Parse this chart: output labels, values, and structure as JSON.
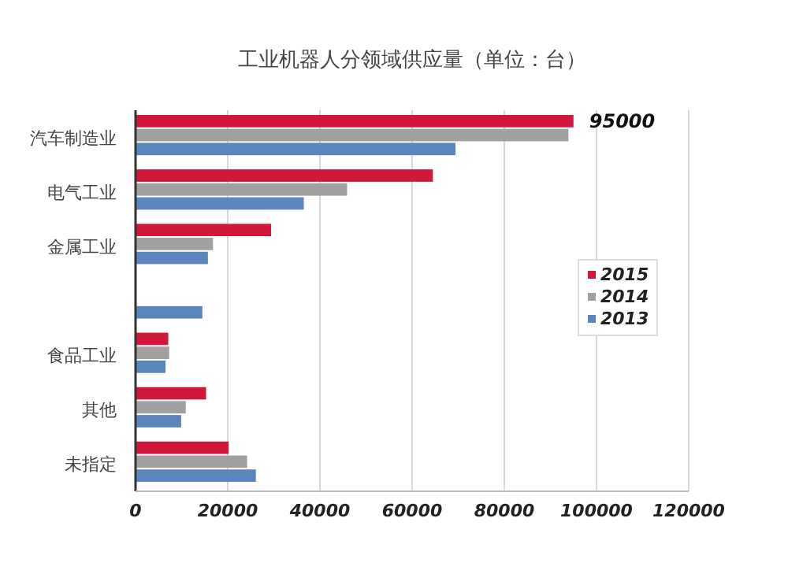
{
  "chart_data": {
    "type": "bar",
    "orientation": "horizontal",
    "title": "工业机器人分领域供应量（单位：台）",
    "categories": [
      "汽车制造业",
      "电气工业",
      "金属工业",
      null,
      "食品工业",
      "其他",
      "未指定"
    ],
    "series": [
      {
        "name": "2015",
        "color": "#d0183a",
        "values": [
          95000,
          64500,
          29400,
          null,
          7100,
          15300,
          20200
        ],
        "value_labels": [
          "95000",
          null,
          null,
          null,
          null,
          null,
          null
        ]
      },
      {
        "name": "2014",
        "color": "#a0a0a0",
        "values": [
          93900,
          45900,
          16800,
          null,
          7300,
          10900,
          24200
        ]
      },
      {
        "name": "2013",
        "color": "#5b86bd",
        "values": [
          69400,
          36500,
          15700,
          14500,
          6500,
          9900,
          26100
        ]
      }
    ],
    "xlim": [
      0,
      120000
    ],
    "xticks": [
      0,
      20000,
      40000,
      60000,
      80000,
      100000,
      120000
    ],
    "grid": "x",
    "legend": "right"
  }
}
